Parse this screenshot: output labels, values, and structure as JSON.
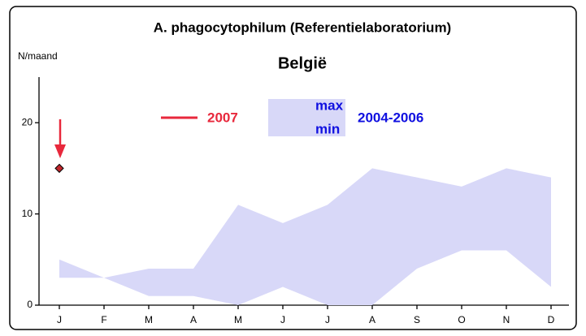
{
  "chart_data": {
    "type": "band",
    "title": "A. phagocytophilum (Referentielaboratorium)",
    "subtitle": "België",
    "y_label": "N/maand",
    "categories": [
      "J",
      "F",
      "M",
      "A",
      "M",
      "J",
      "J",
      "A",
      "S",
      "O",
      "N",
      "D"
    ],
    "series": [
      {
        "name": "2007",
        "color": "#e8283c",
        "marker_color": "#c0262c",
        "values": [
          15,
          null,
          null,
          null,
          null,
          null,
          null,
          null,
          null,
          null,
          null,
          null
        ]
      }
    ],
    "band": {
      "name": "2004-2006",
      "color": "#d8d8f8",
      "text_color": "#1010e0",
      "max_label": "max",
      "min_label": "min",
      "max": [
        5,
        3,
        4,
        4,
        11,
        9,
        11,
        15,
        14,
        13,
        15,
        14
      ],
      "min": [
        3,
        3,
        1,
        1,
        0,
        2,
        0,
        0,
        4,
        6,
        6,
        2
      ]
    },
    "ylim": [
      0,
      25
    ],
    "yticks": [
      0,
      10,
      20
    ]
  }
}
